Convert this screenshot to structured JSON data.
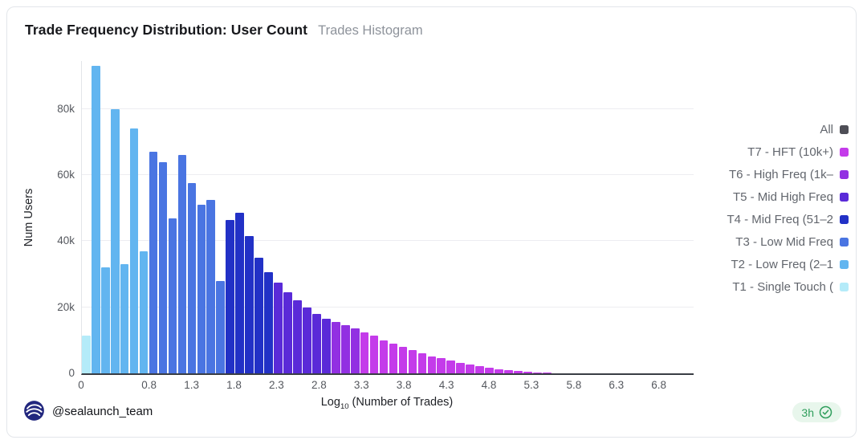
{
  "header": {
    "title": "Trade Frequency Distribution: User Count",
    "subtitle": "Trades Histogram"
  },
  "footer": {
    "handle": "@sealaunch_team",
    "badge_time": "3h"
  },
  "legend": {
    "items": [
      {
        "label": "All",
        "color": "#4e4e56"
      },
      {
        "label": "T7 - HFT (10k+)",
        "color": "#c43bea"
      },
      {
        "label": "T6 - High Freq (1k–",
        "color": "#9230e2"
      },
      {
        "label": "T5 - Mid High Freq",
        "color": "#5a2ad8"
      },
      {
        "label": "T4 - Mid Freq (51–2",
        "color": "#2231c6"
      },
      {
        "label": "T3 - Low Mid Freq",
        "color": "#4a75e2"
      },
      {
        "label": "T2 - Low Freq (2–1",
        "color": "#62b5f0"
      },
      {
        "label": "T1 - Single Touch (",
        "color": "#b4ebf9"
      }
    ]
  },
  "chart_data": {
    "type": "bar",
    "title": "Trade Frequency Distribution: User Count",
    "subtitle": "Trades Histogram",
    "xlabel": "Log10 (Number of Trades)",
    "xlabel_parts": {
      "prefix": "Log",
      "sub": "10",
      "rest": " (Number of Trades)"
    },
    "ylabel": "Num Users",
    "units": "thousands of users",
    "xlim": [
      0,
      7.2
    ],
    "ylim": [
      0,
      94.5
    ],
    "bin_width": 0.113,
    "grid_y": [
      20,
      40,
      60,
      80
    ],
    "y_ticks": [
      {
        "v": 0,
        "label": "0"
      },
      {
        "v": 20,
        "label": "20k"
      },
      {
        "v": 40,
        "label": "40k"
      },
      {
        "v": 60,
        "label": "60k"
      },
      {
        "v": 80,
        "label": "80k"
      }
    ],
    "x_ticks": [
      {
        "v": 0,
        "label": "0"
      },
      {
        "v": 0.8,
        "label": "0.8"
      },
      {
        "v": 1.3,
        "label": "1.3"
      },
      {
        "v": 1.8,
        "label": "1.8"
      },
      {
        "v": 2.3,
        "label": "2.3"
      },
      {
        "v": 2.8,
        "label": "2.8"
      },
      {
        "v": 3.3,
        "label": "3.3"
      },
      {
        "v": 3.8,
        "label": "3.8"
      },
      {
        "v": 4.3,
        "label": "4.3"
      },
      {
        "v": 4.8,
        "label": "4.8"
      },
      {
        "v": 5.3,
        "label": "5.3"
      },
      {
        "v": 5.8,
        "label": "5.8"
      },
      {
        "v": 6.3,
        "label": "6.3"
      },
      {
        "v": 6.8,
        "label": "6.8"
      }
    ],
    "tiers": [
      {
        "id": "T1",
        "name": "T1 - Single Touch",
        "color": "#b4ebf9"
      },
      {
        "id": "T2",
        "name": "T2 - Low Freq",
        "color": "#62b5f0"
      },
      {
        "id": "T3",
        "name": "T3 - Low Mid Freq",
        "color": "#4a75e2"
      },
      {
        "id": "T4",
        "name": "T4 - Mid Freq",
        "color": "#2231c6"
      },
      {
        "id": "T5",
        "name": "T5 - Mid High Freq",
        "color": "#5a2ad8"
      },
      {
        "id": "T6",
        "name": "T6 - High Freq",
        "color": "#9230e2"
      },
      {
        "id": "T7",
        "name": "T7 - HFT",
        "color": "#c43bea"
      }
    ],
    "bars": [
      {
        "h": 11.5,
        "t": 0
      },
      {
        "h": 93,
        "t": 1
      },
      {
        "h": 32,
        "t": 1
      },
      {
        "h": 80,
        "t": 1
      },
      {
        "h": 33,
        "t": 1
      },
      {
        "h": 74,
        "t": 1
      },
      {
        "h": 37,
        "t": 1
      },
      {
        "h": 67,
        "t": 2
      },
      {
        "h": 64,
        "t": 2
      },
      {
        "h": 47,
        "t": 2
      },
      {
        "h": 66,
        "t": 2
      },
      {
        "h": 57.5,
        "t": 2
      },
      {
        "h": 51,
        "t": 2
      },
      {
        "h": 52.5,
        "t": 2
      },
      {
        "h": 28,
        "t": 2
      },
      {
        "h": 46.5,
        "t": 3
      },
      {
        "h": 48.5,
        "t": 3
      },
      {
        "h": 41.5,
        "t": 3
      },
      {
        "h": 35,
        "t": 3
      },
      {
        "h": 30.5,
        "t": 3
      },
      {
        "h": 27.5,
        "t": 4
      },
      {
        "h": 24.5,
        "t": 4
      },
      {
        "h": 22,
        "t": 4
      },
      {
        "h": 20,
        "t": 4
      },
      {
        "h": 18,
        "t": 4
      },
      {
        "h": 16.5,
        "t": 4
      },
      {
        "h": 15.5,
        "t": 5
      },
      {
        "h": 14.5,
        "t": 5
      },
      {
        "h": 13.5,
        "t": 5
      },
      {
        "h": 12.5,
        "t": 6
      },
      {
        "h": 11.5,
        "t": 6
      },
      {
        "h": 10,
        "t": 6
      },
      {
        "h": 9,
        "t": 6
      },
      {
        "h": 8,
        "t": 6
      },
      {
        "h": 7,
        "t": 6
      },
      {
        "h": 6,
        "t": 6
      },
      {
        "h": 5.2,
        "t": 6
      },
      {
        "h": 4.5,
        "t": 6
      },
      {
        "h": 3.8,
        "t": 6
      },
      {
        "h": 3.2,
        "t": 6
      },
      {
        "h": 2.6,
        "t": 6
      },
      {
        "h": 2.1,
        "t": 6
      },
      {
        "h": 1.7,
        "t": 6
      },
      {
        "h": 1.3,
        "t": 6
      },
      {
        "h": 1.0,
        "t": 6
      },
      {
        "h": 0.7,
        "t": 6
      },
      {
        "h": 0.5,
        "t": 6
      },
      {
        "h": 0.35,
        "t": 6
      },
      {
        "h": 0.25,
        "t": 6
      }
    ]
  }
}
